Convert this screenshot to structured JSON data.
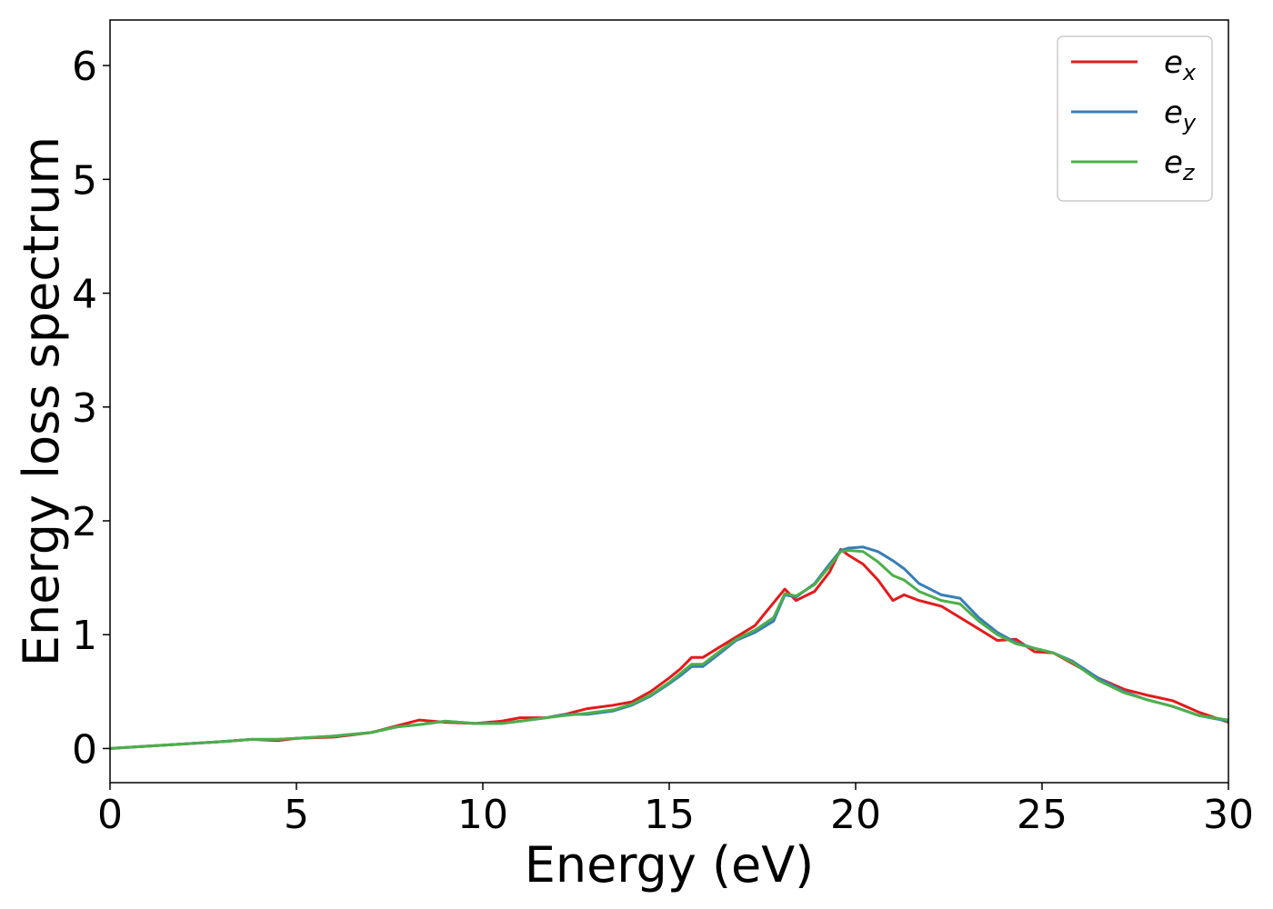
{
  "chart_data": {
    "type": "line",
    "title": "",
    "xlabel": "Energy (eV)",
    "ylabel": "Energy loss spectrum",
    "xlim": [
      0,
      30
    ],
    "ylim": [
      -0.3,
      6.4
    ],
    "xticks": [
      0,
      5,
      10,
      15,
      20,
      25,
      30
    ],
    "yticks": [
      0,
      1,
      2,
      3,
      4,
      5,
      6
    ],
    "grid": false,
    "legend_position": "top-right",
    "series": [
      {
        "name": "e_x",
        "label_main": "e",
        "label_sub": "x",
        "color": "#e41a1c",
        "x": [
          0,
          1,
          2,
          3,
          3.8,
          4.5,
          5,
          6,
          7,
          7.7,
          8.3,
          9,
          9.8,
          10.5,
          11,
          11.7,
          12.2,
          12.8,
          13.5,
          14,
          14.5,
          15,
          15.3,
          15.6,
          15.9,
          16.3,
          16.8,
          17.3,
          17.8,
          18.1,
          18.4,
          18.9,
          19.3,
          19.6,
          19.8,
          20.2,
          20.6,
          21,
          21.3,
          21.7,
          22.3,
          22.8,
          23.3,
          23.8,
          24.3,
          24.8,
          25.3,
          25.8,
          26.5,
          27.2,
          27.8,
          28.5,
          29.2,
          30
        ],
        "y": [
          0,
          0.02,
          0.04,
          0.06,
          0.08,
          0.07,
          0.09,
          0.1,
          0.14,
          0.2,
          0.25,
          0.23,
          0.22,
          0.24,
          0.27,
          0.27,
          0.3,
          0.35,
          0.38,
          0.41,
          0.5,
          0.62,
          0.7,
          0.8,
          0.8,
          0.88,
          0.98,
          1.08,
          1.28,
          1.4,
          1.3,
          1.38,
          1.55,
          1.75,
          1.7,
          1.62,
          1.48,
          1.3,
          1.35,
          1.3,
          1.25,
          1.15,
          1.05,
          0.95,
          0.96,
          0.85,
          0.84,
          0.75,
          0.62,
          0.52,
          0.47,
          0.42,
          0.32,
          0.23
        ]
      },
      {
        "name": "e_y",
        "label_main": "e",
        "label_sub": "y",
        "color": "#377eb8",
        "x": [
          0,
          1,
          2,
          3,
          3.8,
          4.5,
          5,
          6,
          7,
          7.7,
          8.3,
          9,
          9.8,
          10.5,
          11,
          11.7,
          12.2,
          12.8,
          13.5,
          14,
          14.5,
          15,
          15.3,
          15.6,
          15.9,
          16.3,
          16.8,
          17.3,
          17.8,
          18.1,
          18.4,
          18.9,
          19.3,
          19.6,
          19.8,
          20.2,
          20.6,
          21,
          21.3,
          21.7,
          22.3,
          22.8,
          23.3,
          23.8,
          24.3,
          24.8,
          25.3,
          25.8,
          26.5,
          27.2,
          27.8,
          28.5,
          29.2,
          30
        ],
        "y": [
          0,
          0.02,
          0.04,
          0.06,
          0.08,
          0.08,
          0.09,
          0.11,
          0.14,
          0.19,
          0.21,
          0.24,
          0.22,
          0.22,
          0.24,
          0.27,
          0.3,
          0.3,
          0.33,
          0.38,
          0.46,
          0.57,
          0.64,
          0.72,
          0.72,
          0.82,
          0.95,
          1.02,
          1.12,
          1.35,
          1.33,
          1.45,
          1.62,
          1.74,
          1.76,
          1.77,
          1.73,
          1.65,
          1.58,
          1.45,
          1.35,
          1.32,
          1.15,
          1.02,
          0.93,
          0.88,
          0.84,
          0.77,
          0.62,
          0.5,
          0.43,
          0.37,
          0.29,
          0.24
        ]
      },
      {
        "name": "e_z",
        "label_main": "e",
        "label_sub": "z",
        "color": "#4daf4a",
        "x": [
          0,
          1,
          2,
          3,
          3.8,
          4.5,
          5,
          6,
          7,
          7.7,
          8.3,
          9,
          9.8,
          10.5,
          11,
          11.7,
          12.2,
          12.8,
          13.5,
          14,
          14.5,
          15,
          15.3,
          15.6,
          15.9,
          16.3,
          16.8,
          17.3,
          17.8,
          18.1,
          18.4,
          18.9,
          19.3,
          19.6,
          19.8,
          20.2,
          20.6,
          21,
          21.3,
          21.7,
          22.3,
          22.8,
          23.3,
          23.8,
          24.3,
          24.8,
          25.3,
          25.8,
          26.5,
          27.2,
          27.8,
          28.5,
          29.2,
          30
        ],
        "y": [
          0,
          0.02,
          0.04,
          0.06,
          0.08,
          0.08,
          0.09,
          0.11,
          0.14,
          0.19,
          0.21,
          0.24,
          0.22,
          0.22,
          0.24,
          0.27,
          0.29,
          0.31,
          0.34,
          0.39,
          0.47,
          0.58,
          0.66,
          0.74,
          0.74,
          0.84,
          0.96,
          1.04,
          1.15,
          1.36,
          1.34,
          1.44,
          1.6,
          1.73,
          1.74,
          1.73,
          1.64,
          1.52,
          1.48,
          1.38,
          1.3,
          1.27,
          1.12,
          1.0,
          0.92,
          0.88,
          0.84,
          0.76,
          0.6,
          0.49,
          0.43,
          0.37,
          0.29,
          0.25
        ]
      }
    ]
  }
}
